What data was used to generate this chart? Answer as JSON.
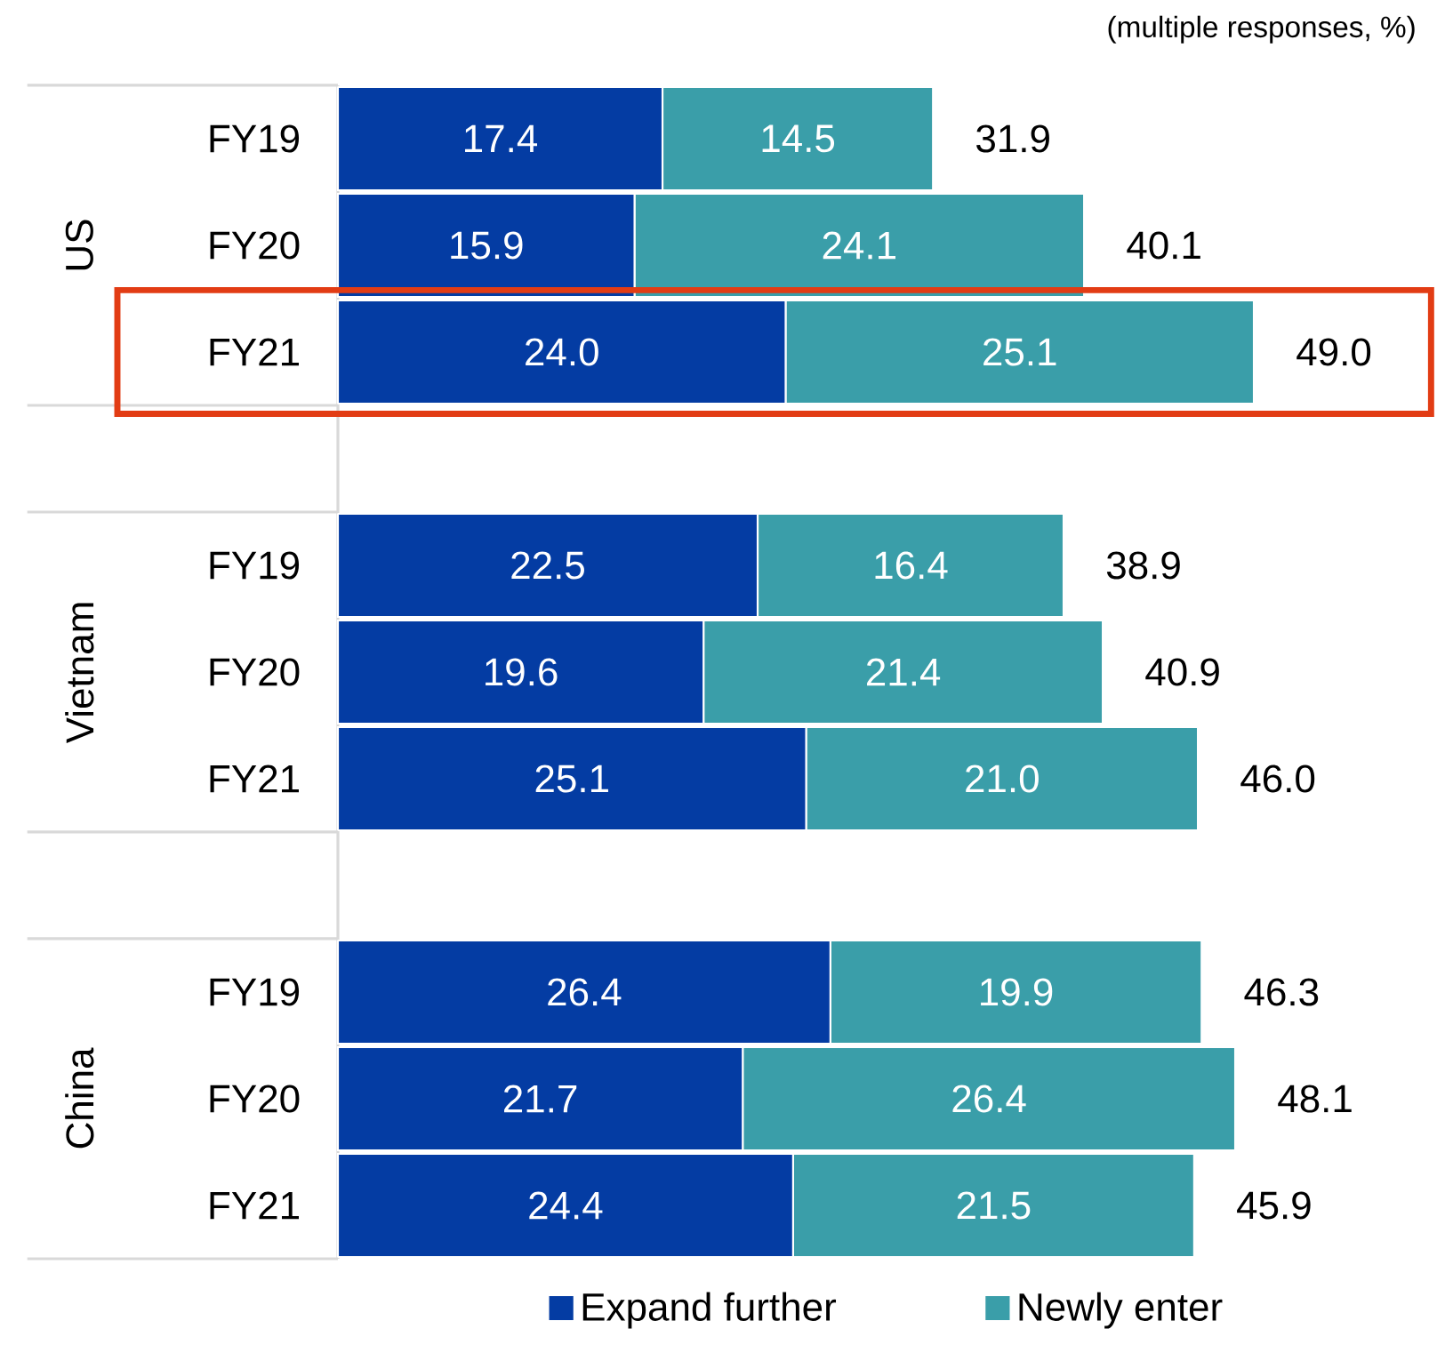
{
  "chart_data": {
    "type": "bar",
    "orientation": "horizontal",
    "stacked": true,
    "legend": "bottom",
    "categories": [
      "FY19",
      "FY20",
      "FY21",
      null,
      "FY19",
      "FY20",
      "FY21",
      null,
      "FY19",
      "FY20",
      "FY21"
    ],
    "series": [
      {
        "name": "Expand further",
        "color": "#043ca3",
        "values": [
          17.4,
          15.9,
          24.0,
          null,
          22.5,
          19.6,
          25.1,
          null,
          26.4,
          21.7,
          24.4
        ],
        "value_labels": [
          "17.4",
          "15.9",
          "24.0",
          null,
          "22.5",
          "19.6",
          "25.1",
          null,
          "26.4",
          "21.7",
          "24.4"
        ]
      },
      {
        "name": "Newly enter",
        "color": "#3a9ea9",
        "values": [
          14.5,
          24.1,
          25.1,
          null,
          16.4,
          21.4,
          21.0,
          null,
          19.9,
          26.4,
          21.5
        ],
        "value_labels": [
          "14.5",
          "24.1",
          "25.1",
          null,
          "16.4",
          "21.4",
          "21.0",
          null,
          "19.9",
          "26.4",
          "21.5"
        ]
      }
    ],
    "totals": [
      "31.9",
      "40.1",
      "49.0",
      null,
      "38.9",
      "40.9",
      "46.0",
      null,
      "46.3",
      "48.1",
      "45.9"
    ],
    "annotations": [
      "(multiple responses, %)",
      "US",
      "Vietnam",
      "China"
    ]
  }
}
